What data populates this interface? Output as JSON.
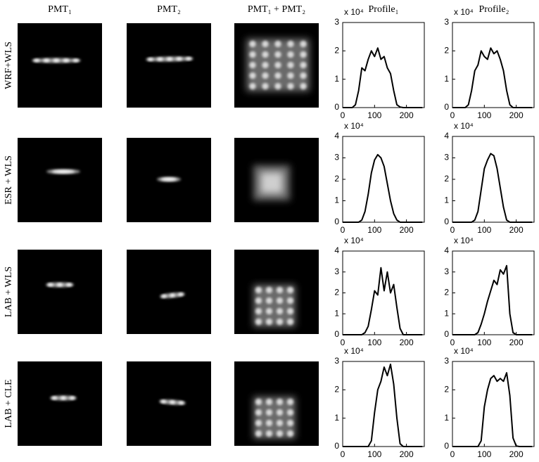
{
  "columns": [
    "PMT₁",
    "PMT₂",
    "PMT₁ + PMT₂",
    "Profile₁",
    "Profile₂"
  ],
  "rows": [
    "WRF+WLS",
    "ESR + WLS",
    "LAB + WLS",
    "LAB + CLE"
  ],
  "chart_data": [
    {
      "type": "line",
      "y_multiplier": "x 10⁴",
      "color": "#000000",
      "xlim": [
        0,
        256
      ],
      "xticks": [
        0,
        100,
        200
      ],
      "ylim": [
        0,
        3
      ],
      "yticks": [
        0,
        1,
        2,
        3
      ],
      "x": [
        0,
        10,
        20,
        30,
        40,
        50,
        60,
        70,
        80,
        90,
        100,
        110,
        120,
        130,
        140,
        150,
        160,
        170,
        180,
        190,
        200,
        210,
        220,
        230,
        240,
        250
      ],
      "values": [
        0,
        0,
        0,
        0,
        0.1,
        0.6,
        1.4,
        1.3,
        1.7,
        2.0,
        1.8,
        2.1,
        1.7,
        1.8,
        1.4,
        1.2,
        0.6,
        0.1,
        0.02,
        0,
        0,
        0,
        0,
        0,
        0,
        0
      ]
    },
    {
      "type": "line",
      "y_multiplier": "x 10⁴",
      "color": "#000000",
      "xlim": [
        0,
        256
      ],
      "xticks": [
        0,
        100,
        200
      ],
      "ylim": [
        0,
        3
      ],
      "yticks": [
        0,
        1,
        2,
        3
      ],
      "x": [
        0,
        10,
        20,
        30,
        40,
        50,
        60,
        70,
        80,
        90,
        100,
        110,
        120,
        130,
        140,
        150,
        160,
        170,
        180,
        190,
        200,
        210,
        220,
        230,
        240,
        250
      ],
      "values": [
        0,
        0,
        0,
        0,
        0,
        0.1,
        0.6,
        1.3,
        1.5,
        2.0,
        1.8,
        1.7,
        2.1,
        1.9,
        2.0,
        1.7,
        1.3,
        0.6,
        0.1,
        0,
        0,
        0,
        0,
        0,
        0,
        0
      ]
    },
    {
      "type": "line",
      "y_multiplier": "x 10⁴",
      "color": "#000000",
      "xlim": [
        0,
        256
      ],
      "xticks": [
        0,
        100,
        200
      ],
      "ylim": [
        0,
        4
      ],
      "yticks": [
        0,
        1,
        2,
        3,
        4
      ],
      "x": [
        0,
        10,
        20,
        30,
        40,
        50,
        60,
        70,
        80,
        90,
        100,
        110,
        120,
        130,
        140,
        150,
        160,
        170,
        180,
        190,
        200,
        210,
        220,
        230,
        240,
        250
      ],
      "values": [
        0,
        0,
        0,
        0,
        0,
        0,
        0.1,
        0.5,
        1.3,
        2.3,
        2.9,
        3.15,
        3.0,
        2.6,
        1.8,
        1.0,
        0.4,
        0.1,
        0,
        0,
        0,
        0,
        0,
        0,
        0,
        0
      ]
    },
    {
      "type": "line",
      "y_multiplier": "x 10⁴",
      "color": "#000000",
      "xlim": [
        0,
        256
      ],
      "xticks": [
        0,
        100,
        200
      ],
      "ylim": [
        0,
        4
      ],
      "yticks": [
        0,
        1,
        2,
        3,
        4
      ],
      "x": [
        0,
        10,
        20,
        30,
        40,
        50,
        60,
        70,
        80,
        90,
        100,
        110,
        120,
        130,
        140,
        150,
        160,
        170,
        180,
        190,
        200,
        210,
        220,
        230,
        240,
        250
      ],
      "values": [
        0,
        0,
        0,
        0,
        0,
        0,
        0,
        0.1,
        0.5,
        1.5,
        2.5,
        2.9,
        3.2,
        3.1,
        2.5,
        1.6,
        0.7,
        0.1,
        0,
        0,
        0,
        0,
        0,
        0,
        0,
        0
      ]
    },
    {
      "type": "line",
      "y_multiplier": "x 10⁴",
      "color": "#000000",
      "xlim": [
        0,
        256
      ],
      "xticks": [
        0,
        100,
        200
      ],
      "ylim": [
        0,
        4
      ],
      "yticks": [
        0,
        1,
        2,
        3,
        4
      ],
      "x": [
        0,
        10,
        20,
        30,
        40,
        50,
        60,
        70,
        80,
        90,
        100,
        110,
        120,
        130,
        140,
        150,
        160,
        170,
        180,
        190,
        200,
        210,
        220,
        230,
        240,
        250
      ],
      "values": [
        0,
        0,
        0,
        0,
        0,
        0,
        0,
        0.1,
        0.4,
        1.2,
        2.1,
        1.9,
        3.2,
        2.1,
        3.0,
        2.0,
        2.4,
        1.3,
        0.3,
        0,
        0,
        0,
        0,
        0,
        0,
        0
      ]
    },
    {
      "type": "line",
      "y_multiplier": "x 10⁴",
      "color": "#000000",
      "xlim": [
        0,
        256
      ],
      "xticks": [
        0,
        100,
        200
      ],
      "ylim": [
        0,
        4
      ],
      "yticks": [
        0,
        1,
        2,
        3,
        4
      ],
      "x": [
        0,
        10,
        20,
        30,
        40,
        50,
        60,
        70,
        80,
        90,
        100,
        110,
        120,
        130,
        140,
        150,
        160,
        170,
        180,
        190,
        200,
        210,
        220,
        230,
        240,
        250
      ],
      "values": [
        0,
        0,
        0,
        0,
        0,
        0,
        0,
        0,
        0.1,
        0.5,
        1.0,
        1.6,
        2.1,
        2.6,
        2.4,
        3.1,
        2.9,
        3.3,
        1.0,
        0.1,
        0,
        0,
        0,
        0,
        0,
        0
      ]
    },
    {
      "type": "line",
      "y_multiplier": "x 10⁴",
      "color": "#000000",
      "xlim": [
        0,
        256
      ],
      "xticks": [
        0,
        100,
        200
      ],
      "ylim": [
        0,
        3
      ],
      "yticks": [
        0,
        1,
        2,
        3
      ],
      "x": [
        0,
        10,
        20,
        30,
        40,
        50,
        60,
        70,
        80,
        90,
        100,
        110,
        120,
        130,
        140,
        150,
        160,
        170,
        180,
        190,
        200,
        210,
        220,
        230,
        240,
        250
      ],
      "values": [
        0,
        0,
        0,
        0,
        0,
        0,
        0,
        0,
        0,
        0.2,
        1.2,
        2.0,
        2.3,
        2.8,
        2.5,
        2.9,
        2.2,
        1.0,
        0.1,
        0,
        0,
        0,
        0,
        0,
        0,
        0
      ]
    },
    {
      "type": "line",
      "y_multiplier": "x 10⁴",
      "color": "#000000",
      "xlim": [
        0,
        256
      ],
      "xticks": [
        0,
        100,
        200
      ],
      "ylim": [
        0,
        3
      ],
      "yticks": [
        0,
        1,
        2,
        3
      ],
      "x": [
        0,
        10,
        20,
        30,
        40,
        50,
        60,
        70,
        80,
        90,
        100,
        110,
        120,
        130,
        140,
        150,
        160,
        170,
        180,
        190,
        200,
        210,
        220,
        230,
        240,
        250
      ],
      "values": [
        0,
        0,
        0,
        0,
        0,
        0,
        0,
        0,
        0,
        0.2,
        1.4,
        2.0,
        2.4,
        2.5,
        2.3,
        2.4,
        2.3,
        2.6,
        1.8,
        0.3,
        0.02,
        0,
        0,
        0,
        0,
        0
      ]
    }
  ]
}
